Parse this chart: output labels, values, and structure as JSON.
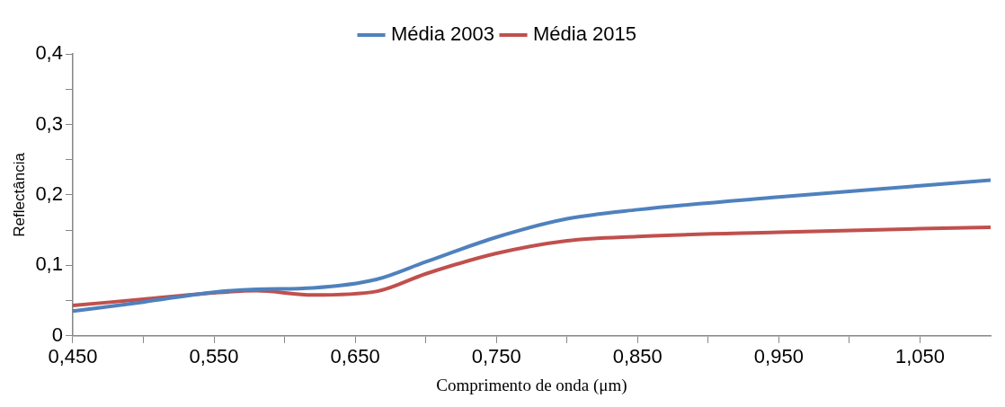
{
  "chart_data": {
    "type": "line",
    "xlabel": "Comprimento de onda (μm)",
    "ylabel": "Reflectância",
    "xlim": [
      0.45,
      1.1
    ],
    "xticks": [
      {
        "value": 0.45,
        "label": "0,450"
      },
      {
        "value": 0.5,
        "label": null
      },
      {
        "value": 0.55,
        "label": "0,550"
      },
      {
        "value": 0.6,
        "label": null
      },
      {
        "value": 0.65,
        "label": "0,650"
      },
      {
        "value": 0.7,
        "label": null
      },
      {
        "value": 0.75,
        "label": "0,750"
      },
      {
        "value": 0.8,
        "label": null
      },
      {
        "value": 0.85,
        "label": "0,850"
      },
      {
        "value": 0.9,
        "label": null
      },
      {
        "value": 0.95,
        "label": "0,950"
      },
      {
        "value": 1.0,
        "label": null
      },
      {
        "value": 1.05,
        "label": "1,050"
      }
    ],
    "ylim": [
      0,
      0.4
    ],
    "yticks": [
      0,
      {
        "value": 0.05,
        "label": null
      },
      {
        "value": 0.1,
        "label": "0,1"
      },
      {
        "value": 0.15,
        "label": null
      },
      {
        "value": 0.2,
        "label": "0,2"
      },
      {
        "value": 0.25,
        "label": null
      },
      {
        "value": 0.3,
        "label": "0,3"
      },
      {
        "value": 0.35,
        "label": null
      },
      {
        "value": 0.4,
        "label": "0,4"
      }
    ],
    "x": [
      0.45,
      0.5,
      0.55,
      0.58,
      0.62,
      0.665,
      0.7,
      0.75,
      0.8,
      0.85,
      0.95,
      1.05,
      1.1
    ],
    "series": [
      {
        "name": "Média 2003",
        "color": "#4f81bd",
        "values": [
          0.035,
          0.048,
          0.062,
          0.066,
          0.068,
          0.08,
          0.105,
          0.14,
          0.166,
          0.179,
          0.197,
          0.213,
          0.221
        ]
      },
      {
        "name": "Média 2015",
        "color": "#c0504d",
        "values": [
          0.043,
          0.052,
          0.061,
          0.064,
          0.058,
          0.063,
          0.088,
          0.117,
          0.135,
          0.141,
          0.147,
          0.152,
          0.154
        ]
      }
    ],
    "legend": "top",
    "grid": false,
    "marker": "none",
    "line_style": "solid"
  }
}
